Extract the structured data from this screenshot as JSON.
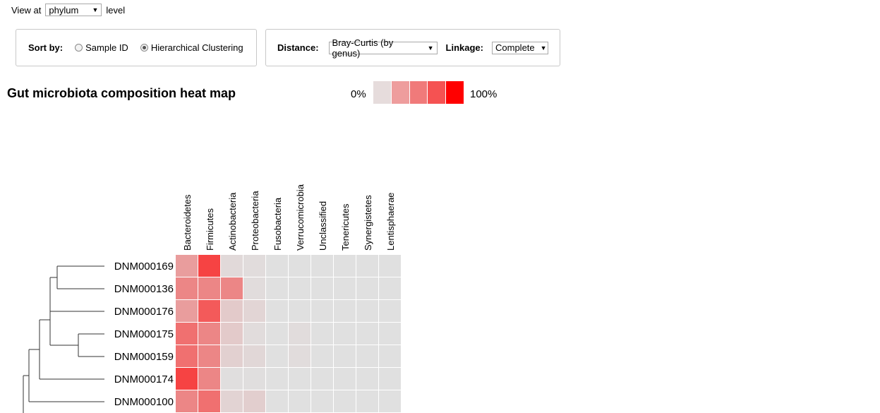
{
  "level_selector": {
    "prefix": "View at",
    "value": "phylum",
    "suffix": "level"
  },
  "sort": {
    "label": "Sort by:",
    "options": [
      {
        "label": "Sample ID",
        "checked": false
      },
      {
        "label": "Hierarchical Clustering",
        "checked": true
      }
    ]
  },
  "distance": {
    "label": "Distance:",
    "value": "Bray-Curtis (by genus)"
  },
  "linkage": {
    "label": "Linkage:",
    "value": "Complete"
  },
  "heatmap_title": "Gut microbiota composition heat map",
  "legend": {
    "min_label": "0%",
    "max_label": "100%",
    "colors": [
      "#e6dcdc",
      "#ee9d9d",
      "#f07a7a",
      "#f55252",
      "#ff0000"
    ]
  },
  "chart_data": {
    "type": "heatmap",
    "title": "Gut microbiota composition heat map",
    "columns": [
      "Bacteroidetes",
      "Firmicutes",
      "Actinobacteria",
      "Proteobacteria",
      "Fusobacteria",
      "Verrucomicrobia",
      "Unclassified",
      "Tenericutes",
      "Synergistetes",
      "Lentisphaerae"
    ],
    "rows": [
      "DNM000169",
      "DNM000136",
      "DNM000176",
      "DNM000175",
      "DNM000159",
      "DNM000174",
      "DNM000100"
    ],
    "values": [
      [
        0.3,
        0.7,
        0.03,
        0.02,
        0,
        0,
        0,
        0,
        0,
        0
      ],
      [
        0.4,
        0.4,
        0.4,
        0.02,
        0,
        0,
        0,
        0,
        0,
        0
      ],
      [
        0.3,
        0.6,
        0.1,
        0.05,
        0,
        0,
        0,
        0,
        0,
        0
      ],
      [
        0.5,
        0.4,
        0.1,
        0.02,
        0,
        0.02,
        0,
        0,
        0,
        0
      ],
      [
        0.5,
        0.4,
        0.07,
        0.04,
        0,
        0.02,
        0,
        0,
        0,
        0
      ],
      [
        0.7,
        0.4,
        0.01,
        0.01,
        0,
        0,
        0,
        0,
        0,
        0
      ],
      [
        0.4,
        0.5,
        0.06,
        0.08,
        0,
        0,
        0,
        0,
        0,
        0
      ]
    ],
    "scale": [
      0,
      100
    ],
    "dendrogram": "rows"
  }
}
